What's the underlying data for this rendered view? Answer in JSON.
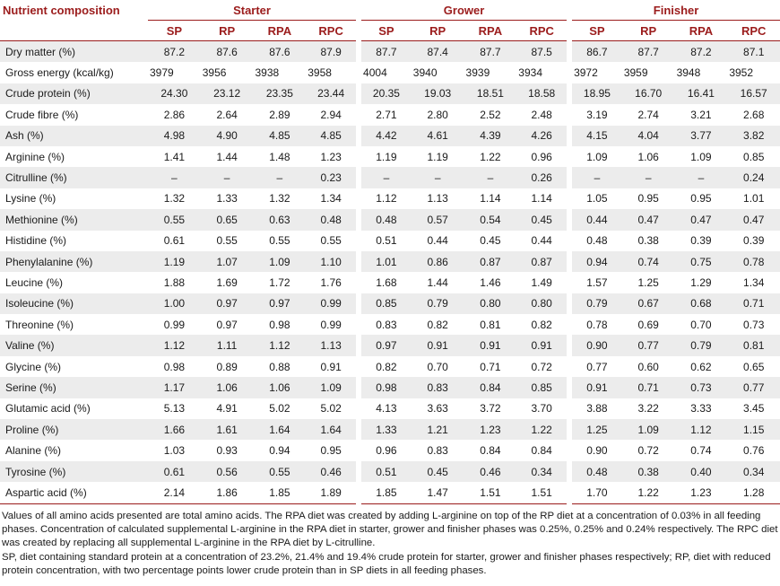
{
  "table": {
    "corner_label": "Nutrient composition",
    "groups": [
      "Starter",
      "Grower",
      "Finisher"
    ],
    "diets": [
      "SP",
      "RP",
      "RPA",
      "RPC"
    ],
    "rows": [
      {
        "label": "Dry matter (%)",
        "values": [
          "87.2",
          "87.6",
          "87.6",
          "87.9",
          "87.7",
          "87.4",
          "87.7",
          "87.5",
          "86.7",
          "87.7",
          "87.2",
          "87.1"
        ]
      },
      {
        "label": "Gross energy (kcal/kg)",
        "values": [
          "3979",
          "3956",
          "3938",
          "3958",
          "4004",
          "3940",
          "3939",
          "3934",
          "3972",
          "3959",
          "3948",
          "3952"
        ]
      },
      {
        "label": "Crude protein (%)",
        "values": [
          "24.30",
          "23.12",
          "23.35",
          "23.44",
          "20.35",
          "19.03",
          "18.51",
          "18.58",
          "18.95",
          "16.70",
          "16.41",
          "16.57"
        ]
      },
      {
        "label": "Crude fibre (%)",
        "values": [
          "2.86",
          "2.64",
          "2.89",
          "2.94",
          "2.71",
          "2.80",
          "2.52",
          "2.48",
          "3.19",
          "2.74",
          "3.21",
          "2.68"
        ]
      },
      {
        "label": "Ash (%)",
        "values": [
          "4.98",
          "4.90",
          "4.85",
          "4.85",
          "4.42",
          "4.61",
          "4.39",
          "4.26",
          "4.15",
          "4.04",
          "3.77",
          "3.82"
        ]
      },
      {
        "label": "Arginine (%)",
        "values": [
          "1.41",
          "1.44",
          "1.48",
          "1.23",
          "1.19",
          "1.19",
          "1.22",
          "0.96",
          "1.09",
          "1.06",
          "1.09",
          "0.85"
        ]
      },
      {
        "label": "Citrulline (%)",
        "values": [
          "–",
          "–",
          "–",
          "0.23",
          "–",
          "–",
          "–",
          "0.26",
          "–",
          "–",
          "–",
          "0.24"
        ]
      },
      {
        "label": "Lysine (%)",
        "values": [
          "1.32",
          "1.33",
          "1.32",
          "1.34",
          "1.12",
          "1.13",
          "1.14",
          "1.14",
          "1.05",
          "0.95",
          "0.95",
          "1.01"
        ]
      },
      {
        "label": "Methionine (%)",
        "values": [
          "0.55",
          "0.65",
          "0.63",
          "0.48",
          "0.48",
          "0.57",
          "0.54",
          "0.45",
          "0.44",
          "0.47",
          "0.47",
          "0.47"
        ]
      },
      {
        "label": "Histidine (%)",
        "values": [
          "0.61",
          "0.55",
          "0.55",
          "0.55",
          "0.51",
          "0.44",
          "0.45",
          "0.44",
          "0.48",
          "0.38",
          "0.39",
          "0.39"
        ]
      },
      {
        "label": "Phenylalanine (%)",
        "values": [
          "1.19",
          "1.07",
          "1.09",
          "1.10",
          "1.01",
          "0.86",
          "0.87",
          "0.87",
          "0.94",
          "0.74",
          "0.75",
          "0.78"
        ]
      },
      {
        "label": "Leucine (%)",
        "values": [
          "1.88",
          "1.69",
          "1.72",
          "1.76",
          "1.68",
          "1.44",
          "1.46",
          "1.49",
          "1.57",
          "1.25",
          "1.29",
          "1.34"
        ]
      },
      {
        "label": "Isoleucine (%)",
        "values": [
          "1.00",
          "0.97",
          "0.97",
          "0.99",
          "0.85",
          "0.79",
          "0.80",
          "0.80",
          "0.79",
          "0.67",
          "0.68",
          "0.71"
        ]
      },
      {
        "label": "Threonine (%)",
        "values": [
          "0.99",
          "0.97",
          "0.98",
          "0.99",
          "0.83",
          "0.82",
          "0.81",
          "0.82",
          "0.78",
          "0.69",
          "0.70",
          "0.73"
        ]
      },
      {
        "label": "Valine (%)",
        "values": [
          "1.12",
          "1.11",
          "1.12",
          "1.13",
          "0.97",
          "0.91",
          "0.91",
          "0.91",
          "0.90",
          "0.77",
          "0.79",
          "0.81"
        ]
      },
      {
        "label": "Glycine (%)",
        "values": [
          "0.98",
          "0.89",
          "0.88",
          "0.91",
          "0.82",
          "0.70",
          "0.71",
          "0.72",
          "0.77",
          "0.60",
          "0.62",
          "0.65"
        ]
      },
      {
        "label": "Serine (%)",
        "values": [
          "1.17",
          "1.06",
          "1.06",
          "1.09",
          "0.98",
          "0.83",
          "0.84",
          "0.85",
          "0.91",
          "0.71",
          "0.73",
          "0.77"
        ]
      },
      {
        "label": "Glutamic acid (%)",
        "values": [
          "5.13",
          "4.91",
          "5.02",
          "5.02",
          "4.13",
          "3.63",
          "3.72",
          "3.70",
          "3.88",
          "3.22",
          "3.33",
          "3.45"
        ]
      },
      {
        "label": "Proline (%)",
        "values": [
          "1.66",
          "1.61",
          "1.64",
          "1.64",
          "1.33",
          "1.21",
          "1.23",
          "1.22",
          "1.25",
          "1.09",
          "1.12",
          "1.15"
        ]
      },
      {
        "label": "Alanine (%)",
        "values": [
          "1.03",
          "0.93",
          "0.94",
          "0.95",
          "0.96",
          "0.83",
          "0.84",
          "0.84",
          "0.90",
          "0.72",
          "0.74",
          "0.76"
        ]
      },
      {
        "label": "Tyrosine (%)",
        "values": [
          "0.61",
          "0.56",
          "0.55",
          "0.46",
          "0.51",
          "0.45",
          "0.46",
          "0.34",
          "0.48",
          "0.38",
          "0.40",
          "0.34"
        ]
      },
      {
        "label": "Aspartic acid (%)",
        "values": [
          "2.14",
          "1.86",
          "1.85",
          "1.89",
          "1.85",
          "1.47",
          "1.51",
          "1.51",
          "1.70",
          "1.22",
          "1.23",
          "1.28"
        ]
      }
    ]
  },
  "notes": [
    "Values of all amino acids presented are total amino acids. The RPA diet was created by adding L-arginine on top of the RP diet at a concentration of 0.03% in all feeding phases. Concentration of calculated supplemental L-arginine in the RPA diet in starter, grower and finisher phases was 0.25%, 0.25% and 0.24% respectively. The RPC diet was created by replacing all supplemental L-arginine in the RPA diet by L-citrulline.",
    "SP, diet containing standard protein at a concentration of 23.2%, 21.4% and 19.4% crude protein for starter, grower and finisher phases respectively; RP, diet with reduced protein concentration, with two percentage points lower crude protein than in SP diets in all feeding phases."
  ],
  "colors": {
    "header_text": "#9b1c1c",
    "rule": "#9b1c1c",
    "stripe": "#ececec"
  }
}
